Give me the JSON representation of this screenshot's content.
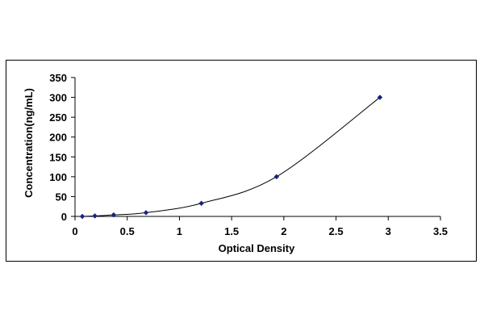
{
  "chart_data": {
    "type": "scatter",
    "title": "",
    "xlabel": "Optical Density",
    "ylabel": "Concentration(ng/mL)",
    "xlim": [
      0,
      3.5
    ],
    "ylim": [
      0,
      350
    ],
    "x_ticks": [
      "0",
      "0.5",
      "1",
      "1.5",
      "2",
      "2.5",
      "3",
      "3.5"
    ],
    "y_ticks": [
      "0",
      "50",
      "100",
      "150",
      "200",
      "250",
      "300",
      "350"
    ],
    "grid": false,
    "legend": "none",
    "series": [
      {
        "points": [
          {
            "x": 0.07,
            "y": 0
          },
          {
            "x": 0.19,
            "y": 1.2
          },
          {
            "x": 0.37,
            "y": 3.8
          },
          {
            "x": 0.68,
            "y": 9.5
          },
          {
            "x": 1.21,
            "y": 33
          },
          {
            "x": 1.93,
            "y": 100
          },
          {
            "x": 2.92,
            "y": 300
          }
        ],
        "line": "smooth",
        "color": "#000000",
        "marker_color": "#1a237e",
        "marker": "diamond"
      }
    ]
  }
}
